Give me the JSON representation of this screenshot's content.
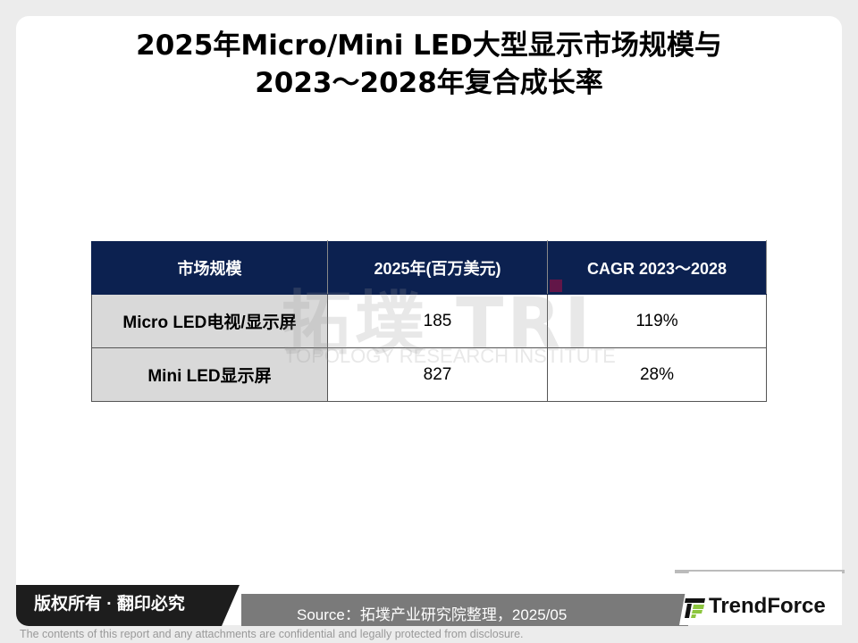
{
  "title": {
    "line1": "2025年Micro/Mini LED大型显示市场规模与",
    "line2": "2023～2028年复合成长率"
  },
  "watermark": {
    "main": "拓墣 TRI",
    "sub": "TOPOLOGY RESEARCH INSTITUTE"
  },
  "table": {
    "headers": [
      "市场规模",
      "2025年(百万美元)",
      "CAGR 2023～2028"
    ],
    "rows": [
      {
        "label": "Micro LED电视/显示屏",
        "value": "185",
        "cagr": "119%"
      },
      {
        "label": "Mini LED显示屏",
        "value": "827",
        "cagr": "28%"
      }
    ]
  },
  "footer": {
    "copyright": "版权所有 · 翻印必究",
    "source": "Source：拓墣产业研究院整理，2025/05",
    "brand": "TrendForce",
    "disclaimer": "The contents of this report and any attachments are confidential and legally protected from disclosure."
  },
  "colors": {
    "header_bg": "#0c2150",
    "label_bg": "#d9d9d9",
    "logo_green": "#8dc63f"
  }
}
